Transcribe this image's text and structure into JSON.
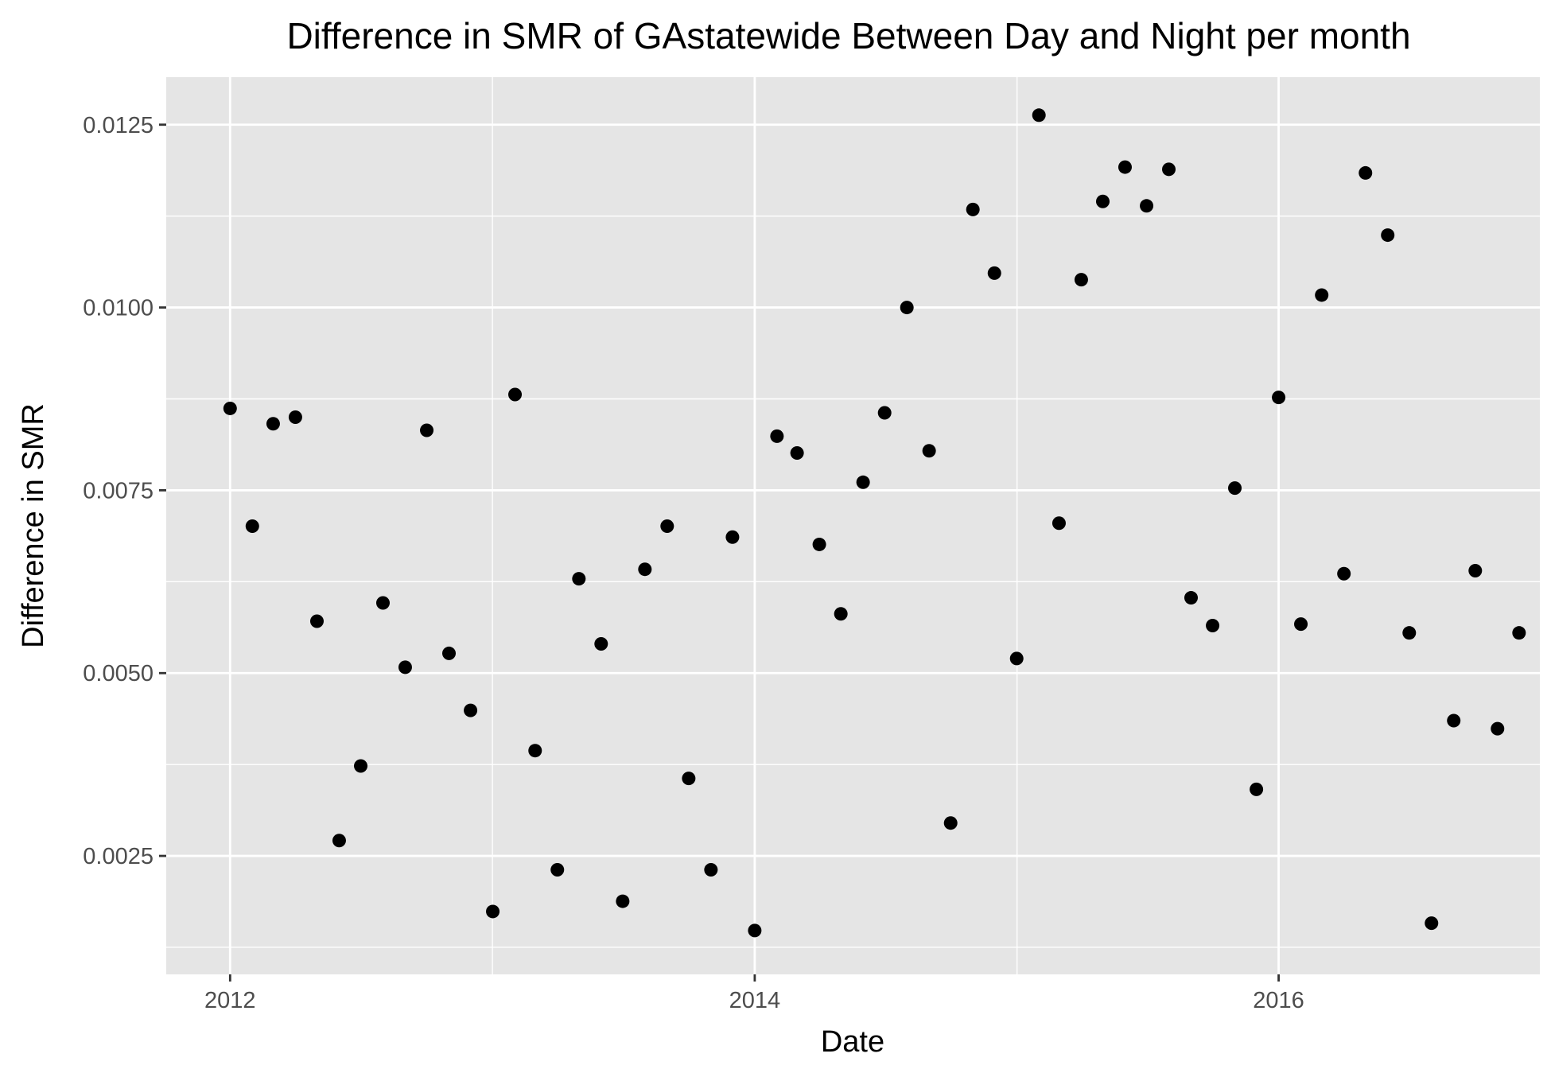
{
  "chart_data": {
    "type": "scatter",
    "title": "Difference in SMR of GAstatewide Between Day and Night per month",
    "xlabel": "Date",
    "ylabel": "Difference in SMR",
    "x_axis_type": "date",
    "xlim": [
      "2011-10-04",
      "2016-12-30"
    ],
    "ylim": [
      0.00088,
      0.01315
    ],
    "x_ticks": [
      {
        "value": "2012-01-01",
        "label": "2012"
      },
      {
        "value": "2014-01-01",
        "label": "2014"
      },
      {
        "value": "2016-01-01",
        "label": "2016"
      }
    ],
    "y_ticks": [
      {
        "value": 0.0025,
        "label": "0.0025"
      },
      {
        "value": 0.005,
        "label": "0.0050"
      },
      {
        "value": 0.0075,
        "label": "0.0075"
      },
      {
        "value": 0.01,
        "label": "0.0100"
      },
      {
        "value": 0.0125,
        "label": "0.0125"
      }
    ],
    "grid": true,
    "legend": "none",
    "colors": {
      "panel_background": "#e5e5e5",
      "grid": "#ffffff",
      "point": "#000000",
      "tick_text": "#4d4d4d",
      "tick_mark": "#333333"
    },
    "series": [
      {
        "x": [
          "2012-01-01",
          "2012-02-01",
          "2012-03-01",
          "2012-04-01",
          "2012-05-01",
          "2012-06-01",
          "2012-07-01",
          "2012-08-01",
          "2012-09-01",
          "2012-10-01",
          "2012-11-01",
          "2012-12-01",
          "2013-01-01",
          "2013-02-01",
          "2013-03-01",
          "2013-04-01",
          "2013-05-01",
          "2013-06-01",
          "2013-07-01",
          "2013-08-01",
          "2013-09-01",
          "2013-10-01",
          "2013-11-01",
          "2013-12-01",
          "2014-01-01",
          "2014-02-01",
          "2014-03-01",
          "2014-04-01",
          "2014-05-01",
          "2014-06-01",
          "2014-07-01",
          "2014-08-01",
          "2014-09-01",
          "2014-10-01",
          "2014-11-01",
          "2014-12-01",
          "2015-01-01",
          "2015-02-01",
          "2015-03-01",
          "2015-04-01",
          "2015-05-01",
          "2015-06-01",
          "2015-07-01",
          "2015-08-01",
          "2015-09-01",
          "2015-10-01",
          "2015-11-01",
          "2015-12-01",
          "2016-01-01",
          "2016-02-01",
          "2016-03-01",
          "2016-04-01",
          "2016-05-01",
          "2016-06-01",
          "2016-07-01",
          "2016-08-01",
          "2016-09-01",
          "2016-10-01",
          "2016-11-01",
          "2016-12-01"
        ],
        "y": [
          0.00862,
          0.00701,
          0.00841,
          0.0085,
          0.00571,
          0.00271,
          0.00373,
          0.00596,
          0.00508,
          0.00832,
          0.00527,
          0.00449,
          0.00174,
          0.00881,
          0.00394,
          0.00231,
          0.00629,
          0.0054,
          0.00188,
          0.00642,
          0.00701,
          0.00356,
          0.00231,
          0.00686,
          0.00148,
          0.00824,
          0.00801,
          0.00676,
          0.00581,
          0.00761,
          0.00856,
          0.01,
          0.00804,
          0.00295,
          0.01134,
          0.01047,
          0.0052,
          0.01263,
          0.00705,
          0.01038,
          0.01145,
          0.01192,
          0.01139,
          0.01189,
          0.00603,
          0.00565,
          0.00753,
          0.00341,
          0.00877,
          0.00567,
          0.01017,
          0.00636,
          0.01184,
          0.01099,
          0.00555,
          0.00158,
          0.00435,
          0.0064,
          0.00424,
          0.00555
        ]
      }
    ]
  }
}
